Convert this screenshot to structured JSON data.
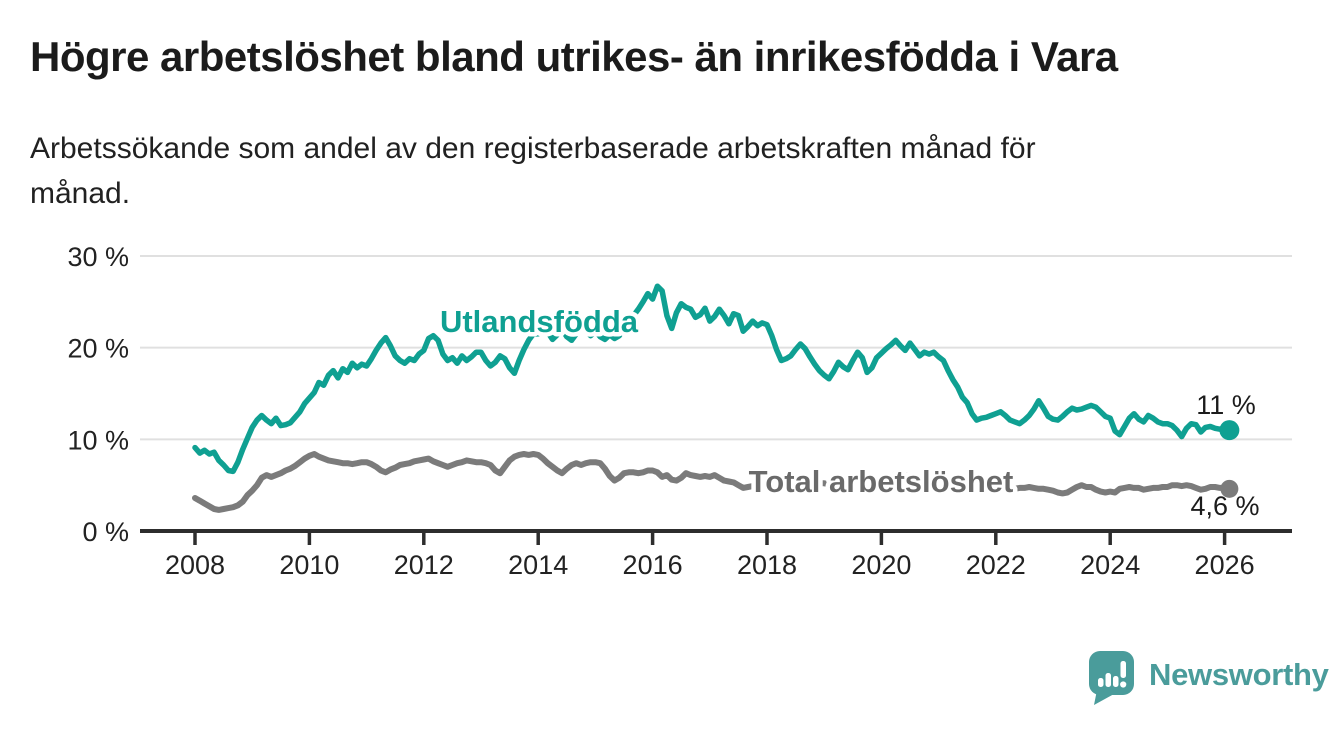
{
  "header": {
    "title": "Högre arbetslöshet bland utrikes- än inrikesfödda i Vara",
    "subtitle_line1": "Arbetssökande som andel av den registerbaserade arbetskraften månad för",
    "subtitle_line2": "månad."
  },
  "chart_data": {
    "type": "line",
    "title": "Högre arbetslöshet bland utrikes- än inrikesfödda i Vara",
    "subtitle": "Arbetssökande som andel av den registerbaserade arbetskraften månad för månad.",
    "frequency": "monthly",
    "x_start_year": 2008,
    "x_end": "2026-02",
    "xlim": [
      2007.0,
      2027.2
    ],
    "ylim": [
      0,
      30
    ],
    "grid": true,
    "legend_position": "inline-labels",
    "y_ticks": [
      {
        "value": 30,
        "label": "30 %"
      },
      {
        "value": 20,
        "label": "20 %"
      },
      {
        "value": 10,
        "label": "10 %"
      },
      {
        "value": 0,
        "label": "0 %"
      }
    ],
    "x_ticks": [
      {
        "value": 2008,
        "label": "2008"
      },
      {
        "value": 2010,
        "label": "2010"
      },
      {
        "value": 2012,
        "label": "2012"
      },
      {
        "value": 2014,
        "label": "2014"
      },
      {
        "value": 2016,
        "label": "2016"
      },
      {
        "value": 2018,
        "label": "2018"
      },
      {
        "value": 2020,
        "label": "2020"
      },
      {
        "value": 2022,
        "label": "2022"
      },
      {
        "value": 2024,
        "label": "2024"
      },
      {
        "value": 2026,
        "label": "2026"
      }
    ],
    "series": [
      {
        "name": "Utlandsfödda",
        "color": "#0fa092",
        "end_label": "11 %",
        "last_value": 11.0,
        "values": [
          9.1,
          8.5,
          8.8,
          8.4,
          8.6,
          7.7,
          7.2,
          6.6,
          6.5,
          7.5,
          8.9,
          10.1,
          11.3,
          12.1,
          12.6,
          12.1,
          11.7,
          12.3,
          11.5,
          11.6,
          11.8,
          12.4,
          13.0,
          13.9,
          14.5,
          15.1,
          16.2,
          15.9,
          17.0,
          17.5,
          16.7,
          17.7,
          17.3,
          18.3,
          17.8,
          18.2,
          18.0,
          18.8,
          19.7,
          20.5,
          21.1,
          20.2,
          19.1,
          18.6,
          18.3,
          18.8,
          18.6,
          19.3,
          19.7,
          21.0,
          21.3,
          20.8,
          19.3,
          18.6,
          18.9,
          18.3,
          19.1,
          18.6,
          19.0,
          19.5,
          19.5,
          18.6,
          18.0,
          18.4,
          19.1,
          18.8,
          17.8,
          17.2,
          18.6,
          19.8,
          20.8,
          21.5,
          21.5,
          22.3,
          21.7,
          20.9,
          21.4,
          22.0,
          21.2,
          20.8,
          21.5,
          22.2,
          21.8,
          21.3,
          21.8,
          21.2,
          20.9,
          21.4,
          21.0,
          21.3,
          22.1,
          22.9,
          23.5,
          24.2,
          25.0,
          25.9,
          25.3,
          26.7,
          26.2,
          23.5,
          22.1,
          23.8,
          24.8,
          24.4,
          24.2,
          23.3,
          23.6,
          24.3,
          22.9,
          23.4,
          24.2,
          23.5,
          22.6,
          23.7,
          23.5,
          21.8,
          22.3,
          22.9,
          22.4,
          22.7,
          22.5,
          21.3,
          19.8,
          18.6,
          18.8,
          19.1,
          19.8,
          20.4,
          19.9,
          19.0,
          18.2,
          17.5,
          17.0,
          16.6,
          17.4,
          18.4,
          17.9,
          17.6,
          18.6,
          19.5,
          18.9,
          17.3,
          17.8,
          18.9,
          19.4,
          19.9,
          20.3,
          20.8,
          20.2,
          19.7,
          20.5,
          19.8,
          19.1,
          19.5,
          19.3,
          19.5,
          19.0,
          18.6,
          17.5,
          16.5,
          15.7,
          14.6,
          14.0,
          12.8,
          12.1,
          12.3,
          12.4,
          12.6,
          12.8,
          13.0,
          12.6,
          12.1,
          11.9,
          11.7,
          12.1,
          12.6,
          13.3,
          14.2,
          13.4,
          12.5,
          12.2,
          12.1,
          12.5,
          13.0,
          13.4,
          13.2,
          13.3,
          13.5,
          13.7,
          13.5,
          13.0,
          12.5,
          12.3,
          10.9,
          10.5,
          11.4,
          12.3,
          12.8,
          12.2,
          11.9,
          12.6,
          12.3,
          11.9,
          11.7,
          11.7,
          11.5,
          11.0,
          10.3,
          11.2,
          11.7,
          11.6,
          10.8,
          11.3,
          11.4,
          11.2,
          11.1,
          11.2,
          11.0
        ]
      },
      {
        "name": "Total arbetslöshet",
        "color": "#7b7b7b",
        "label_color": "#6a6a6a",
        "end_label": "4,6 %",
        "last_value": 4.6,
        "values": [
          3.6,
          3.3,
          3.0,
          2.7,
          2.4,
          2.3,
          2.4,
          2.5,
          2.6,
          2.8,
          3.2,
          3.9,
          4.4,
          5.0,
          5.8,
          6.1,
          5.9,
          6.1,
          6.3,
          6.6,
          6.8,
          7.1,
          7.5,
          7.9,
          8.2,
          8.4,
          8.1,
          7.9,
          7.7,
          7.6,
          7.5,
          7.4,
          7.4,
          7.3,
          7.4,
          7.5,
          7.5,
          7.3,
          7.0,
          6.6,
          6.4,
          6.7,
          6.9,
          7.2,
          7.3,
          7.4,
          7.6,
          7.7,
          7.8,
          7.9,
          7.6,
          7.4,
          7.2,
          7.0,
          7.2,
          7.4,
          7.5,
          7.7,
          7.6,
          7.5,
          7.5,
          7.4,
          7.2,
          6.6,
          6.3,
          7.0,
          7.7,
          8.1,
          8.3,
          8.4,
          8.3,
          8.4,
          8.3,
          7.9,
          7.4,
          7.0,
          6.6,
          6.3,
          6.8,
          7.2,
          7.4,
          7.2,
          7.4,
          7.5,
          7.5,
          7.4,
          6.8,
          6.0,
          5.5,
          5.8,
          6.3,
          6.4,
          6.4,
          6.3,
          6.4,
          6.6,
          6.6,
          6.4,
          5.9,
          6.1,
          5.6,
          5.5,
          5.8,
          6.3,
          6.1,
          6.0,
          5.9,
          6.0,
          5.9,
          6.1,
          5.8,
          5.5,
          5.4,
          5.3,
          5.0,
          4.7,
          4.8,
          4.9,
          4.8,
          4.9,
          5.0,
          5.2,
          5.0,
          4.8,
          4.6,
          4.5,
          4.6,
          4.8,
          4.9,
          5.0,
          5.1,
          5.2,
          5.2,
          5.1,
          5.0,
          4.9,
          4.8,
          4.9,
          5.0,
          5.1,
          5.0,
          5.1,
          5.2,
          5.3,
          5.4,
          5.6,
          5.9,
          6.2,
          6.2,
          6.1,
          6.0,
          5.9,
          5.8,
          5.7,
          5.6,
          5.5,
          5.5,
          5.4,
          5.3,
          5.2,
          5.1,
          5.0,
          4.9,
          4.8,
          4.7,
          4.7,
          4.6,
          4.6,
          4.6,
          4.6,
          4.5,
          4.5,
          4.6,
          4.7,
          4.7,
          4.8,
          4.7,
          4.6,
          4.6,
          4.5,
          4.4,
          4.2,
          4.1,
          4.2,
          4.5,
          4.8,
          5.0,
          4.8,
          4.8,
          4.5,
          4.3,
          4.2,
          4.3,
          4.2,
          4.6,
          4.7,
          4.8,
          4.7,
          4.7,
          4.5,
          4.6,
          4.7,
          4.7,
          4.8,
          4.8,
          5.0,
          5.0,
          4.9,
          5.0,
          4.9,
          4.7,
          4.5,
          4.6,
          4.8,
          4.8,
          4.7,
          4.7,
          4.6
        ]
      }
    ],
    "colors": {
      "grid": "#e0e0e0",
      "axis": "#2d2d2d",
      "tick_text": "#222222"
    }
  },
  "footer": {
    "logo_text": "Newsworthy",
    "brand_color": "#4a9c9b"
  }
}
